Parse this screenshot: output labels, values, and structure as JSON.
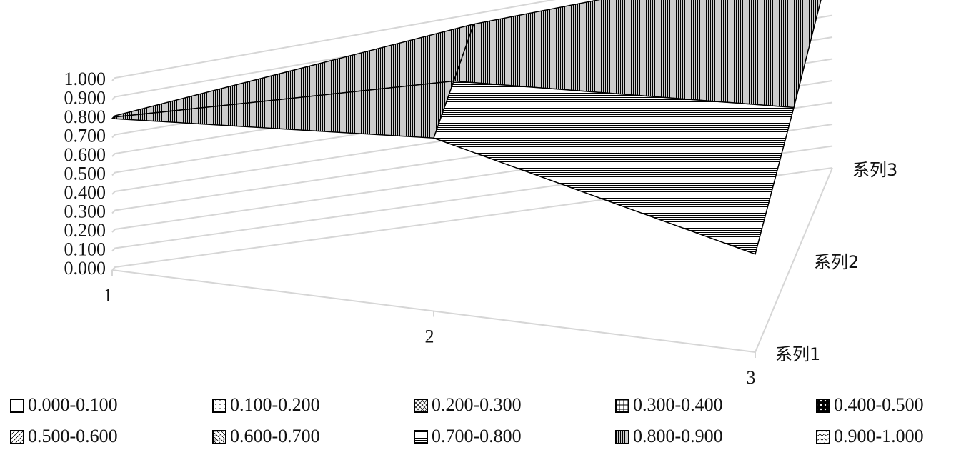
{
  "chart_data": {
    "type": "surface",
    "categories": [
      "1",
      "2",
      "3"
    ],
    "series": [
      {
        "name": "系列1",
        "values": [
          0.8,
          0.85,
          0.45
        ]
      },
      {
        "name": "系列2",
        "values": [
          0.8,
          0.9,
          0.7
        ]
      },
      {
        "name": "系列3",
        "values": [
          0.8,
          0.95,
          0.98
        ]
      }
    ],
    "ylim": [
      0,
      1
    ],
    "yticks": [
      {
        "value": 0,
        "label": "0.000"
      },
      {
        "value": 0.1,
        "label": "0.100"
      },
      {
        "value": 0.2,
        "label": "0.200"
      },
      {
        "value": 0.3,
        "label": "0.300"
      },
      {
        "value": 0.4,
        "label": "0.400"
      },
      {
        "value": 0.5,
        "label": "0.500"
      },
      {
        "value": 0.6,
        "label": "0.600"
      },
      {
        "value": 0.7,
        "label": "0.700"
      },
      {
        "value": 0.8,
        "label": "0.800"
      },
      {
        "value": 0.9,
        "label": "0.900"
      },
      {
        "value": 1,
        "label": "1.000"
      }
    ],
    "legend": [
      "0.000-0.100",
      "0.100-0.200",
      "0.200-0.300",
      "0.300-0.400",
      "0.400-0.500",
      "0.500-0.600",
      "0.600-0.700",
      "0.700-0.800",
      "0.800-0.900",
      "0.900-1.000"
    ],
    "grid": true
  }
}
